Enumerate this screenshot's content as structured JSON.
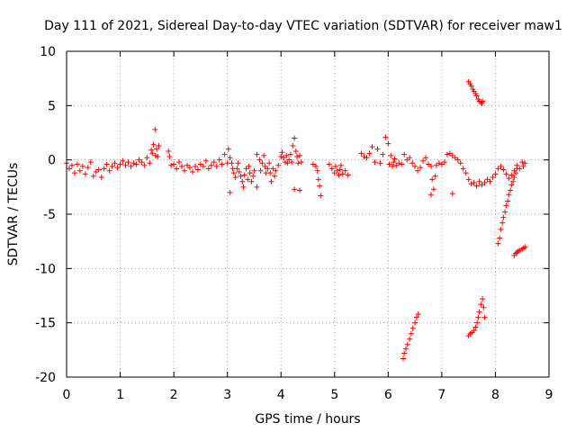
{
  "chart_data": {
    "type": "scatter",
    "title": "Day 111 of 2021, Sidereal Day-to-day VTEC variation (SDTVAR) for receiver maw1",
    "xlabel": "GPS time / hours",
    "ylabel": "SDTVAR / TECUs",
    "xlim": [
      0,
      9
    ],
    "ylim": [
      -20,
      10
    ],
    "xticks": [
      "0",
      "1",
      "2",
      "3",
      "4",
      "5",
      "6",
      "7",
      "8",
      "9"
    ],
    "yticks": [
      "10",
      "5",
      "0",
      "-5",
      "-10",
      "-15",
      "-20"
    ],
    "grid": true,
    "marker": "+",
    "color": "#ff0000",
    "series": [
      {
        "name": "SDTVAR",
        "points": [
          [
            0.0,
            -0.3
          ],
          [
            0.05,
            -0.8
          ],
          [
            0.1,
            -0.5
          ],
          [
            0.15,
            -1.2
          ],
          [
            0.2,
            -0.4
          ],
          [
            0.25,
            -1.0
          ],
          [
            0.3,
            -0.6
          ],
          [
            0.35,
            -1.3
          ],
          [
            0.4,
            -0.7
          ],
          [
            0.45,
            -0.2
          ],
          [
            0.5,
            -1.5
          ],
          [
            0.55,
            -1.1
          ],
          [
            0.6,
            -0.9
          ],
          [
            0.65,
            -1.6
          ],
          [
            0.7,
            -0.8
          ],
          [
            0.75,
            -0.4
          ],
          [
            0.8,
            -1.0
          ],
          [
            0.85,
            -0.6
          ],
          [
            0.9,
            -0.3
          ],
          [
            0.95,
            -0.7
          ],
          [
            1.0,
            -0.4
          ],
          [
            1.05,
            -0.1
          ],
          [
            1.1,
            -0.5
          ],
          [
            1.15,
            -0.2
          ],
          [
            1.2,
            -0.6
          ],
          [
            1.25,
            -0.3
          ],
          [
            1.3,
            -0.4
          ],
          [
            1.35,
            0.0
          ],
          [
            1.4,
            -0.2
          ],
          [
            1.45,
            -0.5
          ],
          [
            1.5,
            0.2
          ],
          [
            1.55,
            -0.3
          ],
          [
            1.58,
            0.9
          ],
          [
            1.6,
            0.6
          ],
          [
            1.62,
            1.4
          ],
          [
            1.65,
            2.8
          ],
          [
            1.66,
            0.4
          ],
          [
            1.68,
            1.0
          ],
          [
            1.7,
            0.3
          ],
          [
            1.72,
            1.3
          ],
          [
            1.9,
            0.8
          ],
          [
            1.92,
            0.3
          ],
          [
            1.95,
            -0.5
          ],
          [
            2.0,
            -0.4
          ],
          [
            2.05,
            -0.8
          ],
          [
            2.1,
            -0.2
          ],
          [
            2.15,
            -0.6
          ],
          [
            2.2,
            -1.0
          ],
          [
            2.25,
            -0.5
          ],
          [
            2.3,
            -0.7
          ],
          [
            2.35,
            -1.1
          ],
          [
            2.4,
            -0.6
          ],
          [
            2.45,
            -0.9
          ],
          [
            2.5,
            -0.4
          ],
          [
            2.55,
            -0.6
          ],
          [
            2.6,
            -0.1
          ],
          [
            2.65,
            -0.8
          ],
          [
            2.7,
            -0.5
          ],
          [
            2.75,
            -0.2
          ],
          [
            2.8,
            -0.6
          ],
          [
            2.85,
            0.0
          ],
          [
            2.9,
            -0.4
          ],
          [
            2.95,
            0.5
          ],
          [
            3.0,
            -0.3
          ],
          [
            3.02,
            1.0
          ],
          [
            3.05,
            0.2
          ],
          [
            3.08,
            -0.3
          ],
          [
            3.1,
            -0.8
          ],
          [
            3.12,
            -1.2
          ],
          [
            3.15,
            -1.6
          ],
          [
            3.18,
            -0.8
          ],
          [
            3.2,
            -0.3
          ],
          [
            3.22,
            -1.1
          ],
          [
            3.25,
            -1.5
          ],
          [
            3.28,
            -2.0
          ],
          [
            3.3,
            -2.5
          ],
          [
            3.32,
            -1.4
          ],
          [
            3.35,
            -0.8
          ],
          [
            3.38,
            -1.8
          ],
          [
            3.4,
            -0.6
          ],
          [
            3.42,
            -1.2
          ],
          [
            3.45,
            -2.0
          ],
          [
            3.48,
            -1.5
          ],
          [
            3.5,
            -1.0
          ],
          [
            3.55,
            0.5
          ],
          [
            3.6,
            0.0
          ],
          [
            3.62,
            -1.0
          ],
          [
            3.65,
            -0.3
          ],
          [
            3.68,
            0.4
          ],
          [
            3.7,
            -0.6
          ],
          [
            3.72,
            -1.2
          ],
          [
            3.75,
            -0.8
          ],
          [
            3.78,
            -0.3
          ],
          [
            3.8,
            -1.2
          ],
          [
            3.82,
            -2.0
          ],
          [
            3.85,
            -0.8
          ],
          [
            3.88,
            -1.5
          ],
          [
            3.9,
            -1.0
          ],
          [
            3.95,
            -0.5
          ],
          [
            4.0,
            0.3
          ],
          [
            4.02,
            0.7
          ],
          [
            4.05,
            0.2
          ],
          [
            4.08,
            -0.2
          ],
          [
            4.1,
            0.4
          ],
          [
            4.12,
            -0.3
          ],
          [
            4.15,
            0.0
          ],
          [
            4.18,
            0.5
          ],
          [
            4.2,
            -0.2
          ],
          [
            4.22,
            1.3
          ],
          [
            4.25,
            2.0
          ],
          [
            4.28,
            0.8
          ],
          [
            4.3,
            0.3
          ],
          [
            4.32,
            -0.3
          ],
          [
            4.35,
            0.4
          ],
          [
            4.38,
            -0.2
          ],
          [
            3.05,
            -3.0
          ],
          [
            3.55,
            -2.5
          ],
          [
            4.25,
            -2.7
          ],
          [
            4.35,
            -2.8
          ],
          [
            4.6,
            -0.4
          ],
          [
            4.65,
            -0.6
          ],
          [
            4.68,
            -1.0
          ],
          [
            4.7,
            -1.8
          ],
          [
            4.72,
            -2.4
          ],
          [
            4.74,
            -3.3
          ],
          [
            4.9,
            -0.4
          ],
          [
            4.95,
            -0.8
          ],
          [
            5.0,
            -1.2
          ],
          [
            5.02,
            -0.6
          ],
          [
            5.05,
            -1.0
          ],
          [
            5.08,
            -1.4
          ],
          [
            5.1,
            -0.9
          ],
          [
            5.12,
            -0.5
          ],
          [
            5.15,
            -1.3
          ],
          [
            5.2,
            -1.0
          ],
          [
            5.25,
            -1.4
          ],
          [
            5.5,
            0.6
          ],
          [
            5.55,
            0.3
          ],
          [
            5.6,
            0.2
          ],
          [
            5.65,
            0.6
          ],
          [
            5.7,
            1.2
          ],
          [
            5.75,
            -0.2
          ],
          [
            5.8,
            1.0
          ],
          [
            5.85,
            -0.3
          ],
          [
            5.9,
            0.5
          ],
          [
            5.95,
            2.1
          ],
          [
            6.0,
            1.5
          ],
          [
            6.02,
            -0.4
          ],
          [
            6.05,
            0.4
          ],
          [
            6.08,
            -0.6
          ],
          [
            6.1,
            -0.2
          ],
          [
            6.12,
            0.1
          ],
          [
            6.15,
            -0.5
          ],
          [
            6.2,
            -0.3
          ],
          [
            6.25,
            -0.4
          ],
          [
            6.3,
            0.5
          ],
          [
            6.35,
            0.0
          ],
          [
            6.4,
            0.2
          ],
          [
            6.45,
            -0.3
          ],
          [
            6.5,
            -0.6
          ],
          [
            6.55,
            -1.0
          ],
          [
            6.6,
            -0.7
          ],
          [
            6.65,
            -0.1
          ],
          [
            6.7,
            0.2
          ],
          [
            6.75,
            -0.4
          ],
          [
            6.8,
            -0.6
          ],
          [
            6.82,
            -1.8
          ],
          [
            6.85,
            -2.7
          ],
          [
            6.88,
            -1.5
          ],
          [
            6.9,
            -0.5
          ],
          [
            6.95,
            -0.3
          ],
          [
            7.0,
            -0.4
          ],
          [
            7.05,
            -0.2
          ],
          [
            7.1,
            0.5
          ],
          [
            7.15,
            0.6
          ],
          [
            7.2,
            0.4
          ],
          [
            7.25,
            0.2
          ],
          [
            7.3,
            0.0
          ],
          [
            7.35,
            -0.3
          ],
          [
            7.4,
            -0.8
          ],
          [
            7.45,
            -1.2
          ],
          [
            7.5,
            -1.8
          ],
          [
            7.55,
            -2.2
          ],
          [
            7.6,
            -2.1
          ],
          [
            7.65,
            -2.4
          ],
          [
            7.7,
            -2.0
          ],
          [
            7.75,
            -2.3
          ],
          [
            7.8,
            -2.1
          ],
          [
            7.85,
            -1.8
          ],
          [
            7.9,
            -2.0
          ],
          [
            7.95,
            -1.6
          ],
          [
            8.0,
            -1.3
          ],
          [
            8.05,
            -0.8
          ],
          [
            8.1,
            -0.6
          ],
          [
            8.15,
            -0.9
          ],
          [
            8.2,
            -1.3
          ],
          [
            8.25,
            -1.7
          ],
          [
            8.3,
            -1.4
          ],
          [
            8.35,
            -1.0
          ],
          [
            8.4,
            -0.5
          ],
          [
            8.45,
            -0.8
          ],
          [
            8.5,
            -0.2
          ],
          [
            8.52,
            -0.6
          ],
          [
            8.55,
            -0.3
          ],
          [
            7.2,
            -3.1
          ],
          [
            6.8,
            -3.2
          ],
          [
            7.5,
            7.2
          ],
          [
            7.53,
            7.0
          ],
          [
            7.55,
            6.8
          ],
          [
            7.58,
            6.5
          ],
          [
            7.6,
            6.3
          ],
          [
            7.63,
            6.1
          ],
          [
            7.65,
            5.9
          ],
          [
            7.68,
            5.6
          ],
          [
            7.7,
            5.4
          ],
          [
            7.73,
            5.3
          ],
          [
            7.75,
            5.2
          ],
          [
            7.76,
            5.4
          ],
          [
            8.05,
            -7.7
          ],
          [
            8.08,
            -7.2
          ],
          [
            8.1,
            -6.4
          ],
          [
            8.13,
            -5.8
          ],
          [
            8.15,
            -5.3
          ],
          [
            8.18,
            -4.8
          ],
          [
            8.2,
            -4.2
          ],
          [
            8.23,
            -3.8
          ],
          [
            8.25,
            -3.2
          ],
          [
            8.28,
            -2.8
          ],
          [
            8.3,
            -2.3
          ],
          [
            8.33,
            -2.0
          ],
          [
            8.35,
            -1.6
          ],
          [
            8.38,
            -1.2
          ],
          [
            8.4,
            -0.8
          ],
          [
            8.35,
            -8.8
          ],
          [
            8.38,
            -8.6
          ],
          [
            8.4,
            -8.5
          ],
          [
            8.43,
            -8.4
          ],
          [
            8.46,
            -8.3
          ],
          [
            8.5,
            -8.2
          ],
          [
            8.53,
            -8.1
          ],
          [
            8.56,
            -8.0
          ],
          [
            6.28,
            -18.3
          ],
          [
            6.3,
            -17.8
          ],
          [
            6.33,
            -17.4
          ],
          [
            6.36,
            -17.0
          ],
          [
            6.4,
            -16.5
          ],
          [
            6.43,
            -16.0
          ],
          [
            6.46,
            -15.5
          ],
          [
            6.5,
            -15.0
          ],
          [
            6.53,
            -14.5
          ],
          [
            6.56,
            -14.2
          ],
          [
            7.5,
            -16.2
          ],
          [
            7.53,
            -16.0
          ],
          [
            7.56,
            -15.9
          ],
          [
            7.6,
            -15.7
          ],
          [
            7.63,
            -15.4
          ],
          [
            7.66,
            -15.0
          ],
          [
            7.68,
            -14.5
          ],
          [
            7.7,
            -14.0
          ],
          [
            7.73,
            -13.3
          ],
          [
            7.76,
            -12.8
          ],
          [
            7.78,
            -13.6
          ],
          [
            7.8,
            -14.5
          ]
        ]
      }
    ]
  }
}
